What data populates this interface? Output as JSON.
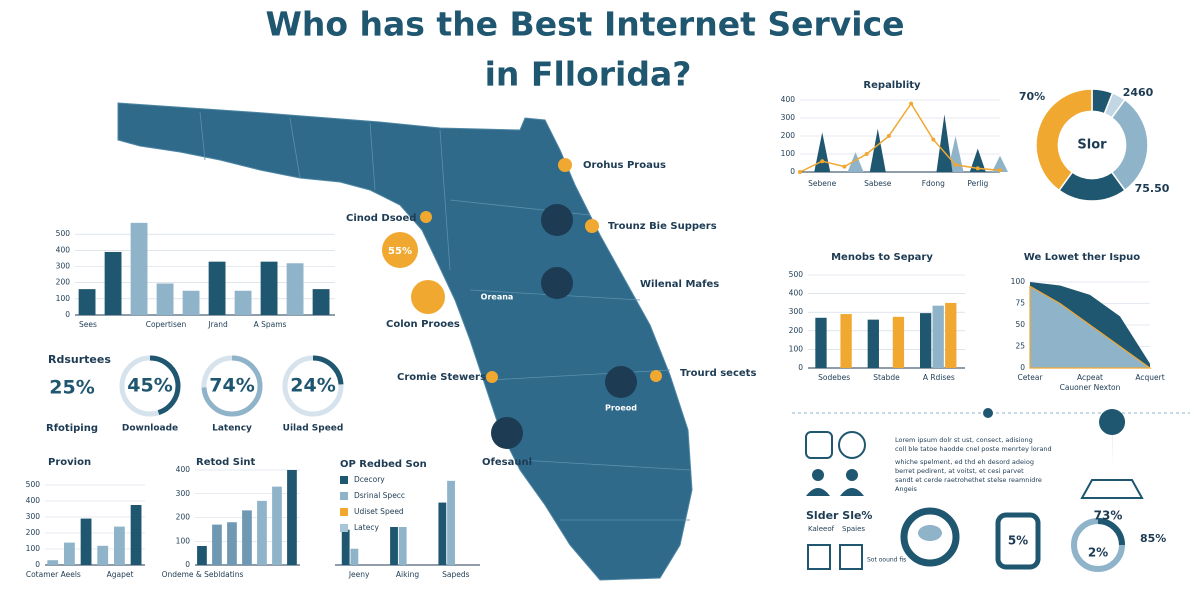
{
  "header": {
    "title": "Who has the Best Internet Service",
    "title_line2": "in Fllorida?"
  },
  "map": {
    "labels": [
      "Orohus Proaus",
      "Trounz Bie Suppers",
      "Cinod Dsoed",
      "55%",
      "Wilenal Mafes",
      "Colon Prooes",
      "Oreana",
      "Cromie Stewers",
      "Trourd secets",
      "Proeod",
      "Ofesaunl"
    ]
  },
  "stat": {
    "heading": "Rdsurtees",
    "value": "25%",
    "label": "Rfotiping"
  },
  "panel": {
    "paragraph": [
      "Lorem ipsum dolr st ust, consect, adisiong",
      "coll ble tatoe haodde cnel poste menrtey lorand",
      "whiche spelment, ed thd eh desord adeiog",
      "berret pedirent, at voitst, et cesi parvet",
      "sandt et cerde raetrohethet stelse reamnidre",
      "Angeis"
    ],
    "slider": "Slder Sle%",
    "slider_a": "Kaleeof",
    "slider_b": "Spaies",
    "slider_c": "Sot oound fis",
    "ring_a": "5%",
    "ring_b": "73%",
    "ring_c": "85%",
    "ring_d": "2%"
  },
  "chart_data": [
    {
      "type": "bar",
      "categories": [
        "Sees",
        null,
        null,
        "Copertisen",
        null,
        "Jrand",
        null,
        "A Spams",
        null,
        null
      ],
      "values": [
        160,
        390,
        570,
        195,
        150,
        330,
        150,
        330,
        320,
        160
      ],
      "colors": [
        "#1f5670",
        "#1f5670",
        "#8fb3c9",
        "#8fb3c9",
        "#8fb3c9",
        "#1f5670",
        "#8fb3c9",
        "#1f5670",
        "#8fb3c9",
        "#1f5670"
      ],
      "ylim": [
        0,
        600
      ],
      "yticks": [
        0,
        100,
        200,
        300,
        400,
        500
      ],
      "grid": true
    },
    {
      "type": "line",
      "title": "Repalblity",
      "xlim": [
        0,
        9
      ],
      "ylim": [
        0,
        400
      ],
      "yticks": [
        0,
        100,
        200,
        300,
        400
      ],
      "grid": true,
      "xticks": [
        {
          "value": 1,
          "label": "Sebene"
        },
        {
          "value": 3.5,
          "label": "Sabese"
        },
        {
          "value": 6,
          "label": "Fdong"
        },
        {
          "value": 8,
          "label": "Perlig"
        }
      ],
      "series": [
        {
          "color": "#8fb3c9",
          "mark": "triangle",
          "x": [
            2.5,
            7,
            9
          ],
          "values": [
            110,
            200,
            90
          ]
        },
        {
          "color": "#1f5670",
          "mark": "triangle",
          "x": [
            1,
            3.5,
            6.5,
            8
          ],
          "values": [
            220,
            240,
            320,
            130
          ]
        },
        {
          "color": "#f0a830",
          "mark": "line",
          "x": [
            0,
            1,
            2,
            3,
            4,
            5,
            6,
            7,
            8,
            9
          ],
          "values": [
            0,
            60,
            30,
            100,
            200,
            380,
            180,
            40,
            20,
            10
          ]
        }
      ]
    },
    {
      "type": "pie",
      "values": [
        6,
        4,
        30,
        20,
        40
      ],
      "colors": [
        "#1f5670",
        "#c2d6e3",
        "#8fb3c9",
        "#1f5670",
        "#f0a830"
      ],
      "center": "Slor",
      "annotations": [
        "70%",
        "2460",
        "75.50"
      ]
    },
    {
      "type": "bar",
      "title": "Menobs to Separy",
      "categories": [
        "Sodebes",
        "Stabde",
        "A Rdises"
      ],
      "series": [
        {
          "color": "#1f5670",
          "values": [
            270,
            260,
            295
          ]
        },
        {
          "color": "#8fb3c9",
          "values": [
            null,
            null,
            335
          ]
        },
        {
          "color": "#f0a830",
          "values": [
            290,
            275,
            350
          ]
        }
      ],
      "ylim": [
        0,
        500
      ],
      "yticks": [
        0,
        100,
        200,
        300,
        400,
        500
      ],
      "grid": true
    },
    {
      "type": "area",
      "title": "We Lowet ther Ispuo",
      "categories": [
        "Cetear",
        null,
        "Acpeat",
        null,
        "Acquert"
      ],
      "xlabel": "Cauoner Nexton",
      "series": [
        {
          "color": "#1f5670",
          "values": [
            100,
            96,
            85,
            60,
            5
          ]
        },
        {
          "color": "#8fb3c9",
          "values": [
            95,
            75,
            50,
            25,
            0
          ]
        }
      ],
      "ylim": [
        0,
        100
      ],
      "yticks": [
        0,
        25,
        50,
        75,
        100
      ],
      "grid": true
    },
    {
      "type": "ring",
      "values": [
        45,
        74,
        24
      ],
      "value_labels": [
        "45%",
        "74%",
        "24%"
      ],
      "categories": [
        "Downloade",
        "Latency",
        "Uilad Speed"
      ],
      "colors": [
        "#1f5670",
        "#8fb3c9",
        "#1f5670"
      ]
    },
    {
      "type": "bar",
      "title": "Provion",
      "categories": [
        "Cotamer Aeels",
        null,
        null,
        null,
        "Agapet",
        null
      ],
      "values": [
        30,
        140,
        290,
        120,
        240,
        375
      ],
      "colors": [
        "#8fb3c9",
        "#8fb3c9",
        "#1f5670",
        "#8fb3c9",
        "#8fb3c9",
        "#1f5670"
      ],
      "ylim": [
        0,
        500
      ],
      "yticks": [
        0,
        100,
        200,
        300,
        400,
        500
      ],
      "grid": true
    },
    {
      "type": "bar",
      "title": "Retod Sint",
      "categories": [
        "Ondeme & Sebldatins",
        null,
        null,
        null,
        null,
        null,
        null
      ],
      "values": [
        80,
        170,
        180,
        230,
        270,
        330,
        400
      ],
      "colors": [
        "#1f5670",
        "#6f98b3",
        "#6f98b3",
        "#6f98b3",
        "#8fb3c9",
        "#8fb3c9",
        "#1f5670"
      ],
      "ylim": [
        0,
        400
      ],
      "yticks": [
        0,
        100,
        200,
        300,
        400
      ],
      "grid": true
    },
    {
      "type": "bar",
      "title": "OP Redbed Son",
      "categories": [
        "Jeeny",
        "Aiking",
        "Sapeds"
      ],
      "legend": "top-left",
      "series": [
        {
          "name": "Dcecory",
          "color": "#1f5670",
          "values": [
            130,
            140,
            230
          ]
        },
        {
          "name": "Dsrinal Specc",
          "color": "#8fb3c9",
          "values": [
            60,
            140,
            310
          ]
        },
        {
          "name": "Udiset Speed",
          "color": "#f0a830",
          "values": [
            null,
            null,
            null
          ]
        },
        {
          "name": "Latecy",
          "color": "#a9c6d8",
          "values": [
            null,
            null,
            null
          ]
        }
      ],
      "ylim": [
        0,
        350
      ]
    }
  ]
}
